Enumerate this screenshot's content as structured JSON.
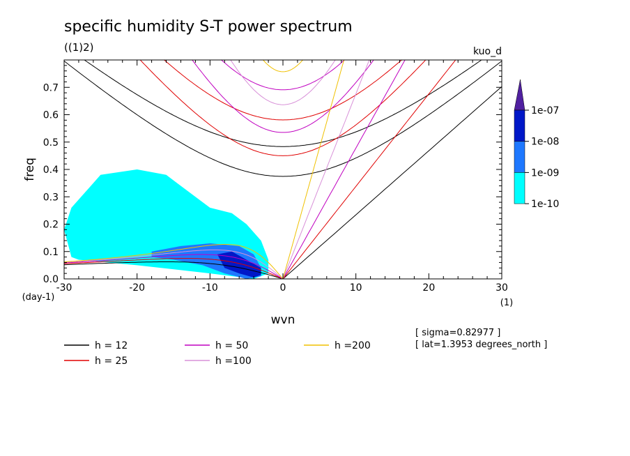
{
  "chart_data": {
    "type": "line",
    "title": "specific humidity S-T power spectrum",
    "subtitle": "((1)2)",
    "corner_label": "kuo_d",
    "xlabel": "wvn",
    "x_unit": "(1)",
    "ylabel": "freq",
    "y_unit": "(day-1)",
    "xlim": [
      -30,
      30
    ],
    "ylim": [
      0,
      0.8
    ],
    "x_ticks": [
      -30,
      -20,
      -10,
      0,
      10,
      20,
      30
    ],
    "x_tick_labels": [
      "-30",
      "-20",
      "-10",
      "0",
      "10",
      "20",
      "30"
    ],
    "y_ticks": [
      0.0,
      0.1,
      0.2,
      0.3,
      0.4,
      0.5,
      0.6,
      0.7
    ],
    "y_tick_labels": [
      "0.0",
      "0.1",
      "0.2",
      "0.3",
      "0.4",
      "0.5",
      "0.6",
      "0.7"
    ],
    "dispersion_curves": [
      {
        "label": "h = 12",
        "h": 12,
        "color": "#000000"
      },
      {
        "label": "h = 25",
        "h": 25,
        "color": "#e00000"
      },
      {
        "label": "h = 50",
        "h": 50,
        "color": "#c000c0"
      },
      {
        "label": "h =100",
        "h": 100,
        "color": "#d890d8"
      },
      {
        "label": "h =200",
        "h": 200,
        "color": "#f0c000"
      }
    ],
    "colorbar": {
      "labels": [
        "1e-07",
        "1e-08",
        "1e-09",
        "1e-10"
      ],
      "colors": [
        "#5020a0",
        "#0018c8",
        "#1e78ff",
        "#00ffff"
      ]
    },
    "shaded_regions": [
      {
        "level": "1e-10",
        "points": [
          [
            -29,
            0.08
          ],
          [
            -30,
            0.18
          ],
          [
            -29,
            0.26
          ],
          [
            -27,
            0.32
          ],
          [
            -25,
            0.38
          ],
          [
            -20,
            0.4
          ],
          [
            -16,
            0.38
          ],
          [
            -12,
            0.3
          ],
          [
            -10,
            0.26
          ],
          [
            -7,
            0.24
          ],
          [
            -5,
            0.2
          ],
          [
            -3,
            0.14
          ],
          [
            -2,
            0.07
          ],
          [
            -2,
            0.02
          ],
          [
            -4,
            0.0
          ],
          [
            -10,
            0.02
          ],
          [
            -20,
            0.05
          ],
          [
            -28,
            0.07
          ]
        ]
      },
      {
        "level": "1e-09",
        "points": [
          [
            -18,
            0.1
          ],
          [
            -14,
            0.12
          ],
          [
            -10,
            0.13
          ],
          [
            -6,
            0.12
          ],
          [
            -4,
            0.09
          ],
          [
            -3,
            0.04
          ],
          [
            -3,
            0.01
          ],
          [
            -5,
            0.0
          ],
          [
            -8,
            0.02
          ],
          [
            -11,
            0.05
          ],
          [
            -15,
            0.07
          ],
          [
            -18,
            0.08
          ]
        ]
      },
      {
        "level": "1e-08",
        "points": [
          [
            -9,
            0.09
          ],
          [
            -7,
            0.1
          ],
          [
            -5,
            0.07
          ],
          [
            -3,
            0.04
          ],
          [
            -3,
            0.015
          ],
          [
            -4,
            0.005
          ],
          [
            -6,
            0.02
          ],
          [
            -8,
            0.04
          ]
        ]
      }
    ],
    "annotations": [
      "[ sigma=0.82977 ]",
      "[ lat=1.3953 degrees_north ]"
    ]
  }
}
